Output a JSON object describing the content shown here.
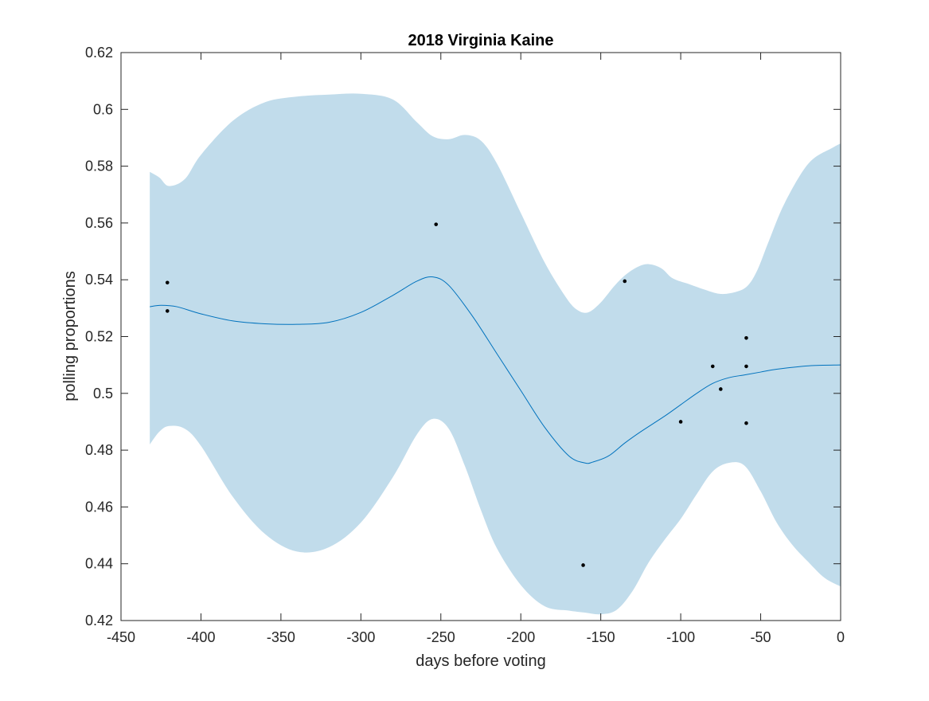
{
  "chart_data": {
    "type": "line",
    "title": "2018 Virginia Kaine",
    "xlabel": "days before voting",
    "ylabel": "polling proportions",
    "xlim": [
      -450,
      0
    ],
    "ylim": [
      0.42,
      0.62
    ],
    "xticks": [
      -450,
      -400,
      -350,
      -300,
      -250,
      -200,
      -150,
      -100,
      -50,
      0
    ],
    "xtick_labels": [
      "-450",
      "-400",
      "-350",
      "-300",
      "-250",
      "-200",
      "-150",
      "-100",
      "-50",
      "0"
    ],
    "yticks": [
      0.42,
      0.44,
      0.46,
      0.48,
      0.5,
      0.52,
      0.54,
      0.56,
      0.58,
      0.6,
      0.62
    ],
    "ytick_labels": [
      "0.42",
      "0.44",
      "0.46",
      "0.48",
      "0.5",
      "0.52",
      "0.54",
      "0.56",
      "0.58",
      "0.6",
      "0.62"
    ],
    "grid": false,
    "colors": {
      "band": "#c1dceb",
      "line": "#0072bd",
      "points": "#000000",
      "axes": "#262626"
    },
    "series": [
      {
        "kind": "mean",
        "x": [
          -432,
          -425,
          -415,
          -400,
          -380,
          -360,
          -340,
          -320,
          -300,
          -280,
          -265,
          -255,
          -245,
          -230,
          -215,
          -200,
          -185,
          -170,
          -160,
          -155,
          -145,
          -135,
          -125,
          -110,
          -100,
          -90,
          -80,
          -70,
          -60,
          -50,
          -40,
          -20,
          0
        ],
        "y": [
          0.5305,
          0.531,
          0.5305,
          0.528,
          0.5255,
          0.5245,
          0.5243,
          0.525,
          0.5285,
          0.5345,
          0.5395,
          0.541,
          0.538,
          0.527,
          0.514,
          0.501,
          0.488,
          0.478,
          0.4755,
          0.4758,
          0.478,
          0.4825,
          0.4865,
          0.492,
          0.496,
          0.5,
          0.5035,
          0.5055,
          0.5065,
          0.5075,
          0.5085,
          0.5097,
          0.51
        ]
      },
      {
        "kind": "upper-bound",
        "x": [
          -432,
          -426,
          -420,
          -410,
          -400,
          -380,
          -360,
          -340,
          -320,
          -300,
          -280,
          -265,
          -255,
          -245,
          -235,
          -225,
          -215,
          -200,
          -185,
          -172,
          -165,
          -158,
          -150,
          -142,
          -135,
          -127,
          -120,
          -112,
          -105,
          -95,
          -85,
          -75,
          -65,
          -58,
          -52,
          -45,
          -35,
          -20,
          -5,
          0
        ],
        "y": [
          0.578,
          0.576,
          0.573,
          0.5755,
          0.584,
          0.596,
          0.6025,
          0.6045,
          0.6052,
          0.6055,
          0.6035,
          0.5955,
          0.5905,
          0.5895,
          0.591,
          0.589,
          0.581,
          0.5635,
          0.546,
          0.534,
          0.5295,
          0.5285,
          0.532,
          0.5375,
          0.5415,
          0.5445,
          0.5455,
          0.544,
          0.5405,
          0.5385,
          0.5365,
          0.535,
          0.5358,
          0.538,
          0.5435,
          0.5535,
          0.567,
          0.581,
          0.5865,
          0.588
        ]
      },
      {
        "kind": "lower-bound",
        "x": [
          -432,
          -426,
          -420,
          -410,
          -400,
          -380,
          -360,
          -340,
          -320,
          -300,
          -280,
          -265,
          -255,
          -245,
          -235,
          -225,
          -215,
          -200,
          -185,
          -170,
          -160,
          -150,
          -140,
          -130,
          -120,
          -110,
          -100,
          -90,
          -80,
          -70,
          -60,
          -50,
          -40,
          -30,
          -20,
          -10,
          0
        ],
        "y": [
          0.482,
          0.4865,
          0.4885,
          0.4875,
          0.4815,
          0.4635,
          0.4505,
          0.4443,
          0.4458,
          0.4545,
          0.4705,
          0.4855,
          0.491,
          0.4875,
          0.4745,
          0.459,
          0.4455,
          0.4325,
          0.425,
          0.4235,
          0.4228,
          0.4222,
          0.4238,
          0.4305,
          0.4405,
          0.4485,
          0.4558,
          0.4645,
          0.4725,
          0.4755,
          0.4745,
          0.4655,
          0.4545,
          0.4465,
          0.4405,
          0.435,
          0.432
        ]
      },
      {
        "kind": "observations",
        "x": [
          -421,
          -421,
          -253,
          -161,
          -135,
          -100,
          -80,
          -75,
          -59,
          -59,
          -59
        ],
        "y": [
          0.539,
          0.529,
          0.5595,
          0.4395,
          0.5395,
          0.49,
          0.5095,
          0.5015,
          0.5195,
          0.5095,
          0.4895
        ]
      }
    ]
  }
}
